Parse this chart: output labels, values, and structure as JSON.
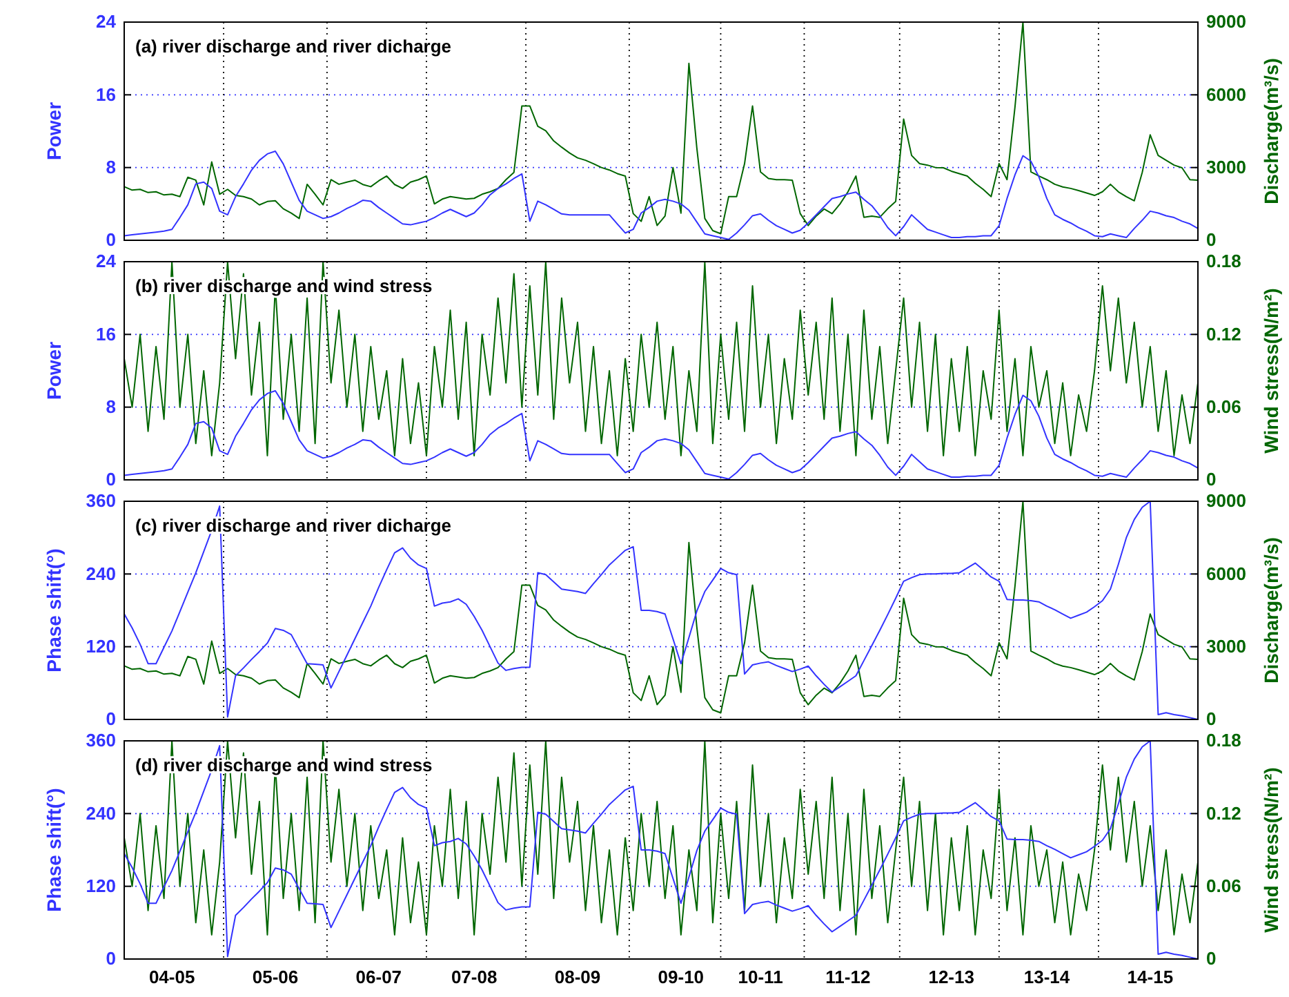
{
  "chart_data": [
    {
      "type": "line",
      "title": "(a) river discharge and river dicharge",
      "ylabel": "Power",
      "y2label": "Discharge(m³/s)",
      "categories": [
        null,
        null,
        null,
        null,
        null,
        null,
        null,
        null,
        null,
        null,
        null,
        null,
        null,
        null,
        null,
        null,
        null,
        null,
        null,
        null,
        null,
        null,
        null,
        null,
        null,
        null,
        null,
        null,
        null,
        null,
        null,
        null,
        null,
        null,
        null,
        null,
        null,
        null,
        null,
        null,
        null,
        null,
        null,
        null,
        null,
        null,
        null,
        null,
        null,
        null,
        null,
        null,
        null,
        null,
        null,
        null,
        null,
        null,
        null,
        null,
        null,
        null,
        null,
        null,
        null,
        null,
        null,
        null,
        null,
        null,
        null,
        null,
        null,
        null,
        null,
        null,
        null,
        null,
        null,
        null,
        null,
        null,
        null,
        null,
        null,
        null,
        null,
        null,
        null,
        null,
        null,
        null,
        null,
        null,
        null,
        null,
        null,
        null,
        null,
        null,
        null,
        null,
        null,
        null,
        null,
        null,
        null,
        null,
        null,
        null,
        null,
        null,
        null,
        null,
        null,
        null,
        null,
        null,
        null,
        null,
        null,
        null,
        null,
        null,
        null,
        null,
        null,
        null,
        null,
        null,
        null,
        null,
        null,
        null,
        null,
        null
      ],
      "tick_labels": "y",
      "ylim": [
        0,
        24
      ],
      "yticks": [
        0,
        8,
        16,
        24
      ],
      "y2lim": [
        0,
        9000
      ],
      "y2ticks": [
        0,
        3000,
        6000,
        9000
      ],
      "grid": "y",
      "series": [
        {
          "color": "#006600",
          "axis": "y2",
          "values": [
            2210,
            2070,
            2100,
            1970,
            2000,
            1870,
            1900,
            1800,
            2600,
            2480,
            1460,
            3230,
            1900,
            2100,
            1850,
            1800,
            1700,
            1460,
            1600,
            1630,
            1300,
            1120,
            900,
            2310,
            1900,
            1460,
            2500,
            2310,
            2400,
            2480,
            2300,
            2210,
            2450,
            2650,
            2300,
            2140,
            2400,
            2500,
            2650,
            1500,
            1700,
            1800,
            1750,
            1700,
            1730,
            1900,
            2000,
            2140,
            2500,
            2800,
            5540,
            5540,
            4700,
            4520,
            4100,
            3840,
            3600,
            3400,
            3300,
            3160,
            3000,
            2900,
            2750,
            2650,
            1100,
            780,
            1800,
            610,
            1000,
            3000,
            1120,
            7300,
            3800,
            900,
            400,
            270,
            1800,
            1800,
            3160,
            5540,
            2820,
            2550,
            2500,
            2500,
            2480,
            1100,
            610,
            1000,
            1290,
            1100,
            1500,
            2000,
            2650,
            950,
            1000,
            950,
            1300,
            1600,
            5000,
            3500,
            3160,
            3100,
            3000,
            2990,
            2850,
            2750,
            2650,
            2350,
            2100,
            1800,
            3160,
            2500,
            5500,
            9000,
            2820,
            2650,
            2500,
            2310,
            2200,
            2140,
            2050,
            1950,
            1850,
            2000,
            2310,
            2000,
            1800,
            1630,
            2800,
            4350,
            3500,
            3300,
            3100,
            2990,
            2500,
            2480
          ]
        },
        {
          "color": "#3333ff",
          "values": [
            0.5,
            0.6,
            0.7,
            0.8,
            0.9,
            1.0,
            1.2,
            2.5,
            3.9,
            6.2,
            6.4,
            5.7,
            3.2,
            2.8,
            4.8,
            6.2,
            7.7,
            8.8,
            9.5,
            9.8,
            8.4,
            6.4,
            4.4,
            3.2,
            2.8,
            2.4,
            2.6,
            3.0,
            3.5,
            3.9,
            4.4,
            4.3,
            3.6,
            3.0,
            2.4,
            1.8,
            1.7,
            1.9,
            2.1,
            2.5,
            3.0,
            3.4,
            3.0,
            2.6,
            3.0,
            3.9,
            5.0,
            5.7,
            6.2,
            6.8,
            7.3,
            2.1,
            4.3,
            3.9,
            3.4,
            2.9,
            2.8,
            2.8,
            2.8,
            2.8,
            2.8,
            2.8,
            1.8,
            0.8,
            1.2,
            3.0,
            3.6,
            4.3,
            4.5,
            4.3,
            4.0,
            3.3,
            2.0,
            0.7,
            0.5,
            0.3,
            0.1,
            0.8,
            1.7,
            2.7,
            2.9,
            2.2,
            1.6,
            1.2,
            0.8,
            1.1,
            1.9,
            2.8,
            3.7,
            4.6,
            4.8,
            5.1,
            5.3,
            4.5,
            3.8,
            2.7,
            1.4,
            0.5,
            1.5,
            2.8,
            2.0,
            1.2,
            0.9,
            0.6,
            0.3,
            0.3,
            0.4,
            0.4,
            0.5,
            0.5,
            1.6,
            4.6,
            7.2,
            9.3,
            8.7,
            7.0,
            4.6,
            2.8,
            2.3,
            1.9,
            1.4,
            1.0,
            0.5,
            0.4,
            0.7,
            0.5,
            0.3,
            1.3,
            2.2,
            3.2,
            3.0,
            2.7,
            2.5,
            2.1,
            1.8,
            1.3
          ]
        }
      ]
    },
    {
      "type": "line",
      "title": "(b) river discharge and wind stress",
      "ylabel": "Power",
      "y2label": "Wind stress(N/m²)",
      "categories": [
        null,
        null,
        null,
        null,
        null,
        null,
        null,
        null,
        null,
        null,
        null,
        null,
        null,
        null,
        null,
        null,
        null,
        null,
        null,
        null,
        null,
        null,
        null,
        null,
        null,
        null,
        null,
        null,
        null,
        null,
        null,
        null,
        null,
        null,
        null,
        null,
        null,
        null,
        null,
        null,
        null,
        null,
        null,
        null,
        null,
        null,
        null,
        null,
        null,
        null,
        null,
        null,
        null,
        null,
        null,
        null,
        null,
        null,
        null,
        null,
        null,
        null,
        null,
        null,
        null,
        null,
        null,
        null,
        null,
        null,
        null,
        null,
        null,
        null,
        null,
        null,
        null,
        null,
        null,
        null,
        null,
        null,
        null,
        null,
        null,
        null,
        null,
        null,
        null,
        null,
        null,
        null,
        null,
        null,
        null,
        null,
        null,
        null,
        null,
        null,
        null,
        null,
        null,
        null,
        null,
        null,
        null,
        null,
        null,
        null,
        null,
        null,
        null,
        null,
        null,
        null,
        null,
        null,
        null,
        null,
        null,
        null,
        null,
        null,
        null,
        null,
        null,
        null,
        null,
        null,
        null,
        null,
        null,
        null,
        null,
        null
      ],
      "tick_labels": "y",
      "ylim": [
        0,
        24
      ],
      "yticks": [
        0,
        8,
        16,
        24
      ],
      "y2lim": [
        0,
        0.18
      ],
      "y2ticks": [
        0,
        0.06,
        0.12,
        0.18
      ],
      "grid": "y",
      "series": [
        {
          "color": "#006600",
          "axis": "y2",
          "values": [
            0.1,
            0.06,
            0.12,
            0.04,
            0.11,
            0.05,
            0.18,
            0.06,
            0.12,
            0.03,
            0.09,
            0.02,
            0.08,
            0.18,
            0.1,
            0.17,
            0.07,
            0.13,
            0.02,
            0.16,
            0.05,
            0.12,
            0.04,
            0.15,
            0.03,
            0.18,
            0.08,
            0.14,
            0.06,
            0.12,
            0.04,
            0.11,
            0.05,
            0.09,
            0.02,
            0.1,
            0.03,
            0.08,
            0.02,
            0.11,
            0.06,
            0.14,
            0.05,
            0.13,
            0.02,
            0.12,
            0.07,
            0.15,
            0.08,
            0.17,
            0.06,
            0.16,
            0.07,
            0.18,
            0.05,
            0.15,
            0.08,
            0.13,
            0.04,
            0.11,
            0.03,
            0.09,
            0.02,
            0.1,
            0.04,
            0.12,
            0.06,
            0.13,
            0.05,
            0.11,
            0.02,
            0.09,
            0.04,
            0.18,
            0.03,
            0.12,
            0.05,
            0.13,
            0.04,
            0.16,
            0.06,
            0.12,
            0.03,
            0.1,
            0.05,
            0.14,
            0.07,
            0.13,
            0.05,
            0.15,
            0.04,
            0.12,
            0.02,
            0.14,
            0.05,
            0.11,
            0.03,
            0.09,
            0.15,
            0.06,
            0.13,
            0.04,
            0.12,
            0.02,
            0.1,
            0.04,
            0.11,
            0.02,
            0.09,
            0.05,
            0.14,
            0.04,
            0.1,
            0.02,
            0.11,
            0.06,
            0.09,
            0.03,
            0.08,
            0.02,
            0.07,
            0.04,
            0.09,
            0.16,
            0.09,
            0.15,
            0.08,
            0.13,
            0.06,
            0.11,
            0.04,
            0.09,
            0.02,
            0.07,
            0.03,
            0.08
          ]
        },
        {
          "color": "#3333ff",
          "values": [
            0.5,
            0.6,
            0.7,
            0.8,
            0.9,
            1.0,
            1.2,
            2.5,
            3.9,
            6.2,
            6.4,
            5.7,
            3.2,
            2.8,
            4.8,
            6.2,
            7.7,
            8.8,
            9.5,
            9.8,
            8.4,
            6.4,
            4.4,
            3.2,
            2.8,
            2.4,
            2.6,
            3.0,
            3.5,
            3.9,
            4.4,
            4.3,
            3.6,
            3.0,
            2.4,
            1.8,
            1.7,
            1.9,
            2.1,
            2.5,
            3.0,
            3.4,
            3.0,
            2.6,
            3.0,
            3.9,
            5.0,
            5.7,
            6.2,
            6.8,
            7.3,
            2.1,
            4.3,
            3.9,
            3.4,
            2.9,
            2.8,
            2.8,
            2.8,
            2.8,
            2.8,
            2.8,
            1.8,
            0.8,
            1.2,
            3.0,
            3.6,
            4.3,
            4.5,
            4.3,
            4.0,
            3.3,
            2.0,
            0.7,
            0.5,
            0.3,
            0.1,
            0.8,
            1.7,
            2.7,
            2.9,
            2.2,
            1.6,
            1.2,
            0.8,
            1.1,
            1.9,
            2.8,
            3.7,
            4.6,
            4.8,
            5.1,
            5.3,
            4.5,
            3.8,
            2.7,
            1.4,
            0.5,
            1.5,
            2.8,
            2.0,
            1.2,
            0.9,
            0.6,
            0.3,
            0.3,
            0.4,
            0.4,
            0.5,
            0.5,
            1.6,
            4.6,
            7.2,
            9.3,
            8.7,
            7.0,
            4.6,
            2.8,
            2.3,
            1.9,
            1.4,
            1.0,
            0.5,
            0.4,
            0.7,
            0.5,
            0.3,
            1.3,
            2.2,
            3.2,
            3.0,
            2.7,
            2.5,
            2.1,
            1.8,
            1.3
          ]
        }
      ]
    },
    {
      "type": "line",
      "title": "(c) river discharge and river dicharge",
      "ylabel": "Phase shift(°)",
      "y2label": "Discharge(m³/s)",
      "categories": [
        null,
        null,
        null,
        null,
        null,
        null,
        null,
        null,
        null,
        null,
        null,
        null,
        null,
        null,
        null,
        null,
        null,
        null,
        null,
        null,
        null,
        null,
        null,
        null,
        null,
        null,
        null,
        null,
        null,
        null,
        null,
        null,
        null,
        null,
        null,
        null,
        null,
        null,
        null,
        null,
        null,
        null,
        null,
        null,
        null,
        null,
        null,
        null,
        null,
        null,
        null,
        null,
        null,
        null,
        null,
        null,
        null,
        null,
        null,
        null,
        null,
        null,
        null,
        null,
        null,
        null,
        null,
        null,
        null,
        null,
        null,
        null,
        null,
        null,
        null,
        null,
        null,
        null,
        null,
        null,
        null,
        null,
        null,
        null,
        null,
        null,
        null,
        null,
        null,
        null,
        null,
        null,
        null,
        null,
        null,
        null,
        null,
        null,
        null,
        null,
        null,
        null,
        null,
        null,
        null,
        null,
        null,
        null,
        null,
        null,
        null,
        null,
        null,
        null,
        null,
        null,
        null,
        null,
        null,
        null,
        null,
        null,
        null,
        null,
        null,
        null,
        null,
        null,
        null,
        null,
        null,
        null,
        null,
        null,
        null,
        null
      ],
      "tick_labels": "y",
      "ylim": [
        0,
        360
      ],
      "yticks": [
        0,
        120,
        240,
        360
      ],
      "y2lim": [
        0,
        9000
      ],
      "y2ticks": [
        0,
        3000,
        6000,
        9000
      ],
      "grid": "y",
      "series": [
        {
          "color": "#006600",
          "axis": "y2",
          "values": [
            2210,
            2070,
            2100,
            1970,
            2000,
            1870,
            1900,
            1800,
            2600,
            2480,
            1460,
            3230,
            1900,
            2100,
            1850,
            1800,
            1700,
            1460,
            1600,
            1630,
            1300,
            1120,
            900,
            2310,
            1900,
            1460,
            2500,
            2310,
            2400,
            2480,
            2300,
            2210,
            2450,
            2650,
            2300,
            2140,
            2400,
            2500,
            2650,
            1500,
            1700,
            1800,
            1750,
            1700,
            1730,
            1900,
            2000,
            2140,
            2500,
            2800,
            5540,
            5540,
            4700,
            4520,
            4100,
            3840,
            3600,
            3400,
            3300,
            3160,
            3000,
            2900,
            2750,
            2650,
            1100,
            780,
            1800,
            610,
            1000,
            3000,
            1120,
            7300,
            3800,
            900,
            400,
            270,
            1800,
            1800,
            3160,
            5540,
            2820,
            2550,
            2500,
            2500,
            2480,
            1100,
            610,
            1000,
            1290,
            1100,
            1500,
            2000,
            2650,
            950,
            1000,
            950,
            1300,
            1600,
            5000,
            3500,
            3160,
            3100,
            3000,
            2990,
            2850,
            2750,
            2650,
            2350,
            2100,
            1800,
            3160,
            2500,
            5500,
            9000,
            2820,
            2650,
            2500,
            2310,
            2200,
            2140,
            2050,
            1950,
            1850,
            2000,
            2310,
            2000,
            1800,
            1630,
            2800,
            4350,
            3500,
            3300,
            3100,
            2990,
            2500,
            2480
          ]
        },
        {
          "color": "#3333ff",
          "values": [
            174,
            151,
            124,
            92,
            92,
            119,
            146,
            178,
            210,
            242,
            277,
            312,
            352,
            4,
            72,
            85,
            99,
            112,
            126,
            150,
            147,
            140,
            116,
            92,
            91,
            90,
            52,
            79,
            106,
            133,
            160,
            187,
            218,
            247,
            275,
            283,
            266,
            255,
            249,
            187,
            192,
            194,
            199,
            190,
            170,
            147,
            120,
            93,
            81,
            84,
            86,
            86,
            242,
            239,
            227,
            215,
            213,
            211,
            208,
            224,
            239,
            255,
            267,
            279,
            285,
            180,
            180,
            178,
            174,
            133,
            92,
            135,
            179,
            211,
            230,
            249,
            242,
            239,
            75,
            90,
            93,
            95,
            89,
            84,
            79,
            83,
            88,
            72,
            58,
            45,
            54,
            63,
            72,
            97,
            122,
            147,
            173,
            200,
            228,
            234,
            239,
            240,
            240,
            241,
            241,
            242,
            250,
            258,
            247,
            235,
            228,
            198,
            197,
            197,
            196,
            194,
            187,
            181,
            174,
            167,
            172,
            177,
            186,
            196,
            215,
            256,
            300,
            330,
            350,
            360,
            8,
            11,
            8,
            6,
            3,
            0
          ]
        }
      ]
    },
    {
      "type": "line",
      "title": "(d) river discharge and wind stress",
      "ylabel": "Phase shift(°)",
      "y2label": "Wind stress(N/m²)",
      "categories": [
        null,
        null,
        null,
        null,
        null,
        null,
        "04-05",
        null,
        null,
        null,
        null,
        null,
        null,
        null,
        null,
        null,
        null,
        null,
        null,
        "05-06",
        null,
        null,
        null,
        null,
        null,
        null,
        null,
        null,
        null,
        null,
        null,
        null,
        "06-07",
        null,
        null,
        null,
        null,
        null,
        null,
        null,
        null,
        null,
        null,
        null,
        "07-08",
        null,
        null,
        null,
        null,
        null,
        null,
        null,
        null,
        null,
        null,
        null,
        null,
        "08-09",
        null,
        null,
        null,
        null,
        null,
        null,
        null,
        null,
        null,
        null,
        null,
        null,
        "09-10",
        null,
        null,
        null,
        null,
        null,
        null,
        null,
        null,
        null,
        "10-11",
        null,
        null,
        null,
        null,
        null,
        null,
        null,
        null,
        null,
        null,
        "11-12",
        null,
        null,
        null,
        null,
        null,
        null,
        null,
        null,
        null,
        null,
        null,
        null,
        "12-13",
        null,
        null,
        null,
        null,
        null,
        null,
        null,
        null,
        null,
        null,
        null,
        "13-14",
        null,
        null,
        null,
        null,
        null,
        null,
        null,
        null,
        null,
        null,
        null,
        null,
        "14-15",
        null,
        null,
        null,
        null,
        null,
        null
      ],
      "ylim": [
        0,
        360
      ],
      "yticks": [
        0,
        120,
        240,
        360
      ],
      "y2lim": [
        0,
        0.18
      ],
      "y2ticks": [
        0,
        0.06,
        0.12,
        0.18
      ],
      "grid": "y",
      "series": [
        {
          "color": "#006600",
          "axis": "y2",
          "values": [
            0.1,
            0.06,
            0.12,
            0.04,
            0.11,
            0.05,
            0.18,
            0.06,
            0.12,
            0.03,
            0.09,
            0.02,
            0.08,
            0.18,
            0.1,
            0.17,
            0.07,
            0.13,
            0.02,
            0.16,
            0.05,
            0.12,
            0.04,
            0.15,
            0.03,
            0.18,
            0.08,
            0.14,
            0.06,
            0.12,
            0.04,
            0.11,
            0.05,
            0.09,
            0.02,
            0.1,
            0.03,
            0.08,
            0.02,
            0.11,
            0.06,
            0.14,
            0.05,
            0.13,
            0.02,
            0.12,
            0.07,
            0.15,
            0.08,
            0.17,
            0.06,
            0.16,
            0.07,
            0.18,
            0.05,
            0.15,
            0.08,
            0.13,
            0.04,
            0.11,
            0.03,
            0.09,
            0.02,
            0.1,
            0.04,
            0.12,
            0.06,
            0.13,
            0.05,
            0.11,
            0.02,
            0.09,
            0.04,
            0.18,
            0.03,
            0.12,
            0.05,
            0.13,
            0.04,
            0.16,
            0.06,
            0.12,
            0.03,
            0.1,
            0.05,
            0.14,
            0.07,
            0.13,
            0.05,
            0.15,
            0.04,
            0.12,
            0.02,
            0.14,
            0.05,
            0.11,
            0.03,
            0.09,
            0.15,
            0.06,
            0.13,
            0.04,
            0.12,
            0.02,
            0.1,
            0.04,
            0.11,
            0.02,
            0.09,
            0.05,
            0.14,
            0.04,
            0.1,
            0.02,
            0.11,
            0.06,
            0.09,
            0.03,
            0.08,
            0.02,
            0.07,
            0.04,
            0.09,
            0.16,
            0.09,
            0.15,
            0.08,
            0.13,
            0.06,
            0.11,
            0.04,
            0.09,
            0.02,
            0.07,
            0.03,
            0.08
          ]
        },
        {
          "color": "#3333ff",
          "values": [
            174,
            151,
            124,
            92,
            92,
            119,
            146,
            178,
            210,
            242,
            277,
            312,
            352,
            4,
            72,
            85,
            99,
            112,
            126,
            150,
            147,
            140,
            116,
            92,
            91,
            90,
            52,
            79,
            106,
            133,
            160,
            187,
            218,
            247,
            275,
            283,
            266,
            255,
            249,
            187,
            192,
            194,
            199,
            190,
            170,
            147,
            120,
            93,
            81,
            84,
            86,
            86,
            242,
            239,
            227,
            215,
            213,
            211,
            208,
            224,
            239,
            255,
            267,
            279,
            285,
            180,
            180,
            178,
            174,
            133,
            92,
            135,
            179,
            211,
            230,
            249,
            242,
            239,
            75,
            90,
            93,
            95,
            89,
            84,
            79,
            83,
            88,
            72,
            58,
            45,
            54,
            63,
            72,
            97,
            122,
            147,
            173,
            200,
            228,
            234,
            239,
            240,
            240,
            241,
            241,
            242,
            250,
            258,
            247,
            235,
            228,
            198,
            197,
            197,
            196,
            194,
            187,
            181,
            174,
            167,
            172,
            177,
            186,
            196,
            215,
            256,
            300,
            330,
            350,
            360,
            8,
            11,
            8,
            6,
            3,
            0
          ]
        }
      ]
    }
  ]
}
